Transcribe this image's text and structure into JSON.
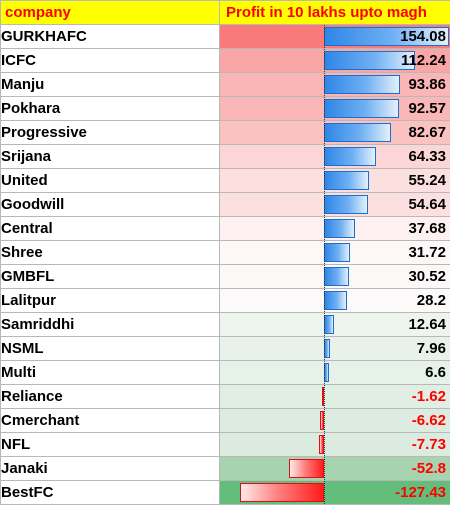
{
  "header": {
    "company": "company",
    "profit": "Profit in 10 lakhs upto magh"
  },
  "colors": {
    "header_bg": "#ffff00",
    "header_text": "#ff0000",
    "bar_positive": "#2f86e6",
    "bar_negative": "#ff1c1c",
    "negative_text": "#ff0000"
  },
  "rows": [
    {
      "company": "GURKHAFC",
      "profit": "154.08",
      "value": 154.08,
      "bg": "#f87a7a"
    },
    {
      "company": "ICFC",
      "profit": "112.24",
      "value": 112.24,
      "bg": "#f9a6a6"
    },
    {
      "company": "Manju",
      "profit": "93.86",
      "value": 93.86,
      "bg": "#fab6b6"
    },
    {
      "company": "Pokhara",
      "profit": "92.57",
      "value": 92.57,
      "bg": "#fab7b7"
    },
    {
      "company": "Progressive",
      "profit": "82.67",
      "value": 82.67,
      "bg": "#fbc2c2"
    },
    {
      "company": "Srijana",
      "profit": "64.33",
      "value": 64.33,
      "bg": "#fcd6d6"
    },
    {
      "company": "United",
      "profit": "55.24",
      "value": 55.24,
      "bg": "#fce0e0"
    },
    {
      "company": "Goodwill",
      "profit": "54.64",
      "value": 54.64,
      "bg": "#fce0e0"
    },
    {
      "company": "Central",
      "profit": "37.68",
      "value": 37.68,
      "bg": "#fdf1f1"
    },
    {
      "company": "Shree",
      "profit": "31.72",
      "value": 31.72,
      "bg": "#fdf7f7"
    },
    {
      "company": "GMBFL",
      "profit": "30.52",
      "value": 30.52,
      "bg": "#fdf8f8"
    },
    {
      "company": "Lalitpur",
      "profit": "28.2",
      "value": 28.2,
      "bg": "#fcfafa"
    },
    {
      "company": "Samriddhi",
      "profit": "12.64",
      "value": 12.64,
      "bg": "#eef5ef"
    },
    {
      "company": "NSML",
      "profit": "7.96",
      "value": 7.96,
      "bg": "#e8f2ea"
    },
    {
      "company": "Multi",
      "profit": "6.6",
      "value": 6.6,
      "bg": "#e6f1e8"
    },
    {
      "company": "Reliance",
      "profit": "-1.62",
      "value": -1.62,
      "bg": "#e0eee3"
    },
    {
      "company": "Cmerchant",
      "profit": "-6.62",
      "value": -6.62,
      "bg": "#dcece0"
    },
    {
      "company": "NFL",
      "profit": "-7.73",
      "value": -7.73,
      "bg": "#dbebdf"
    },
    {
      "company": "Janaki",
      "profit": "-52.8",
      "value": -52.8,
      "bg": "#a7d3b0"
    },
    {
      "company": "BestFC",
      "profit": "-127.43",
      "value": -127.43,
      "bg": "#63be7b"
    }
  ]
}
